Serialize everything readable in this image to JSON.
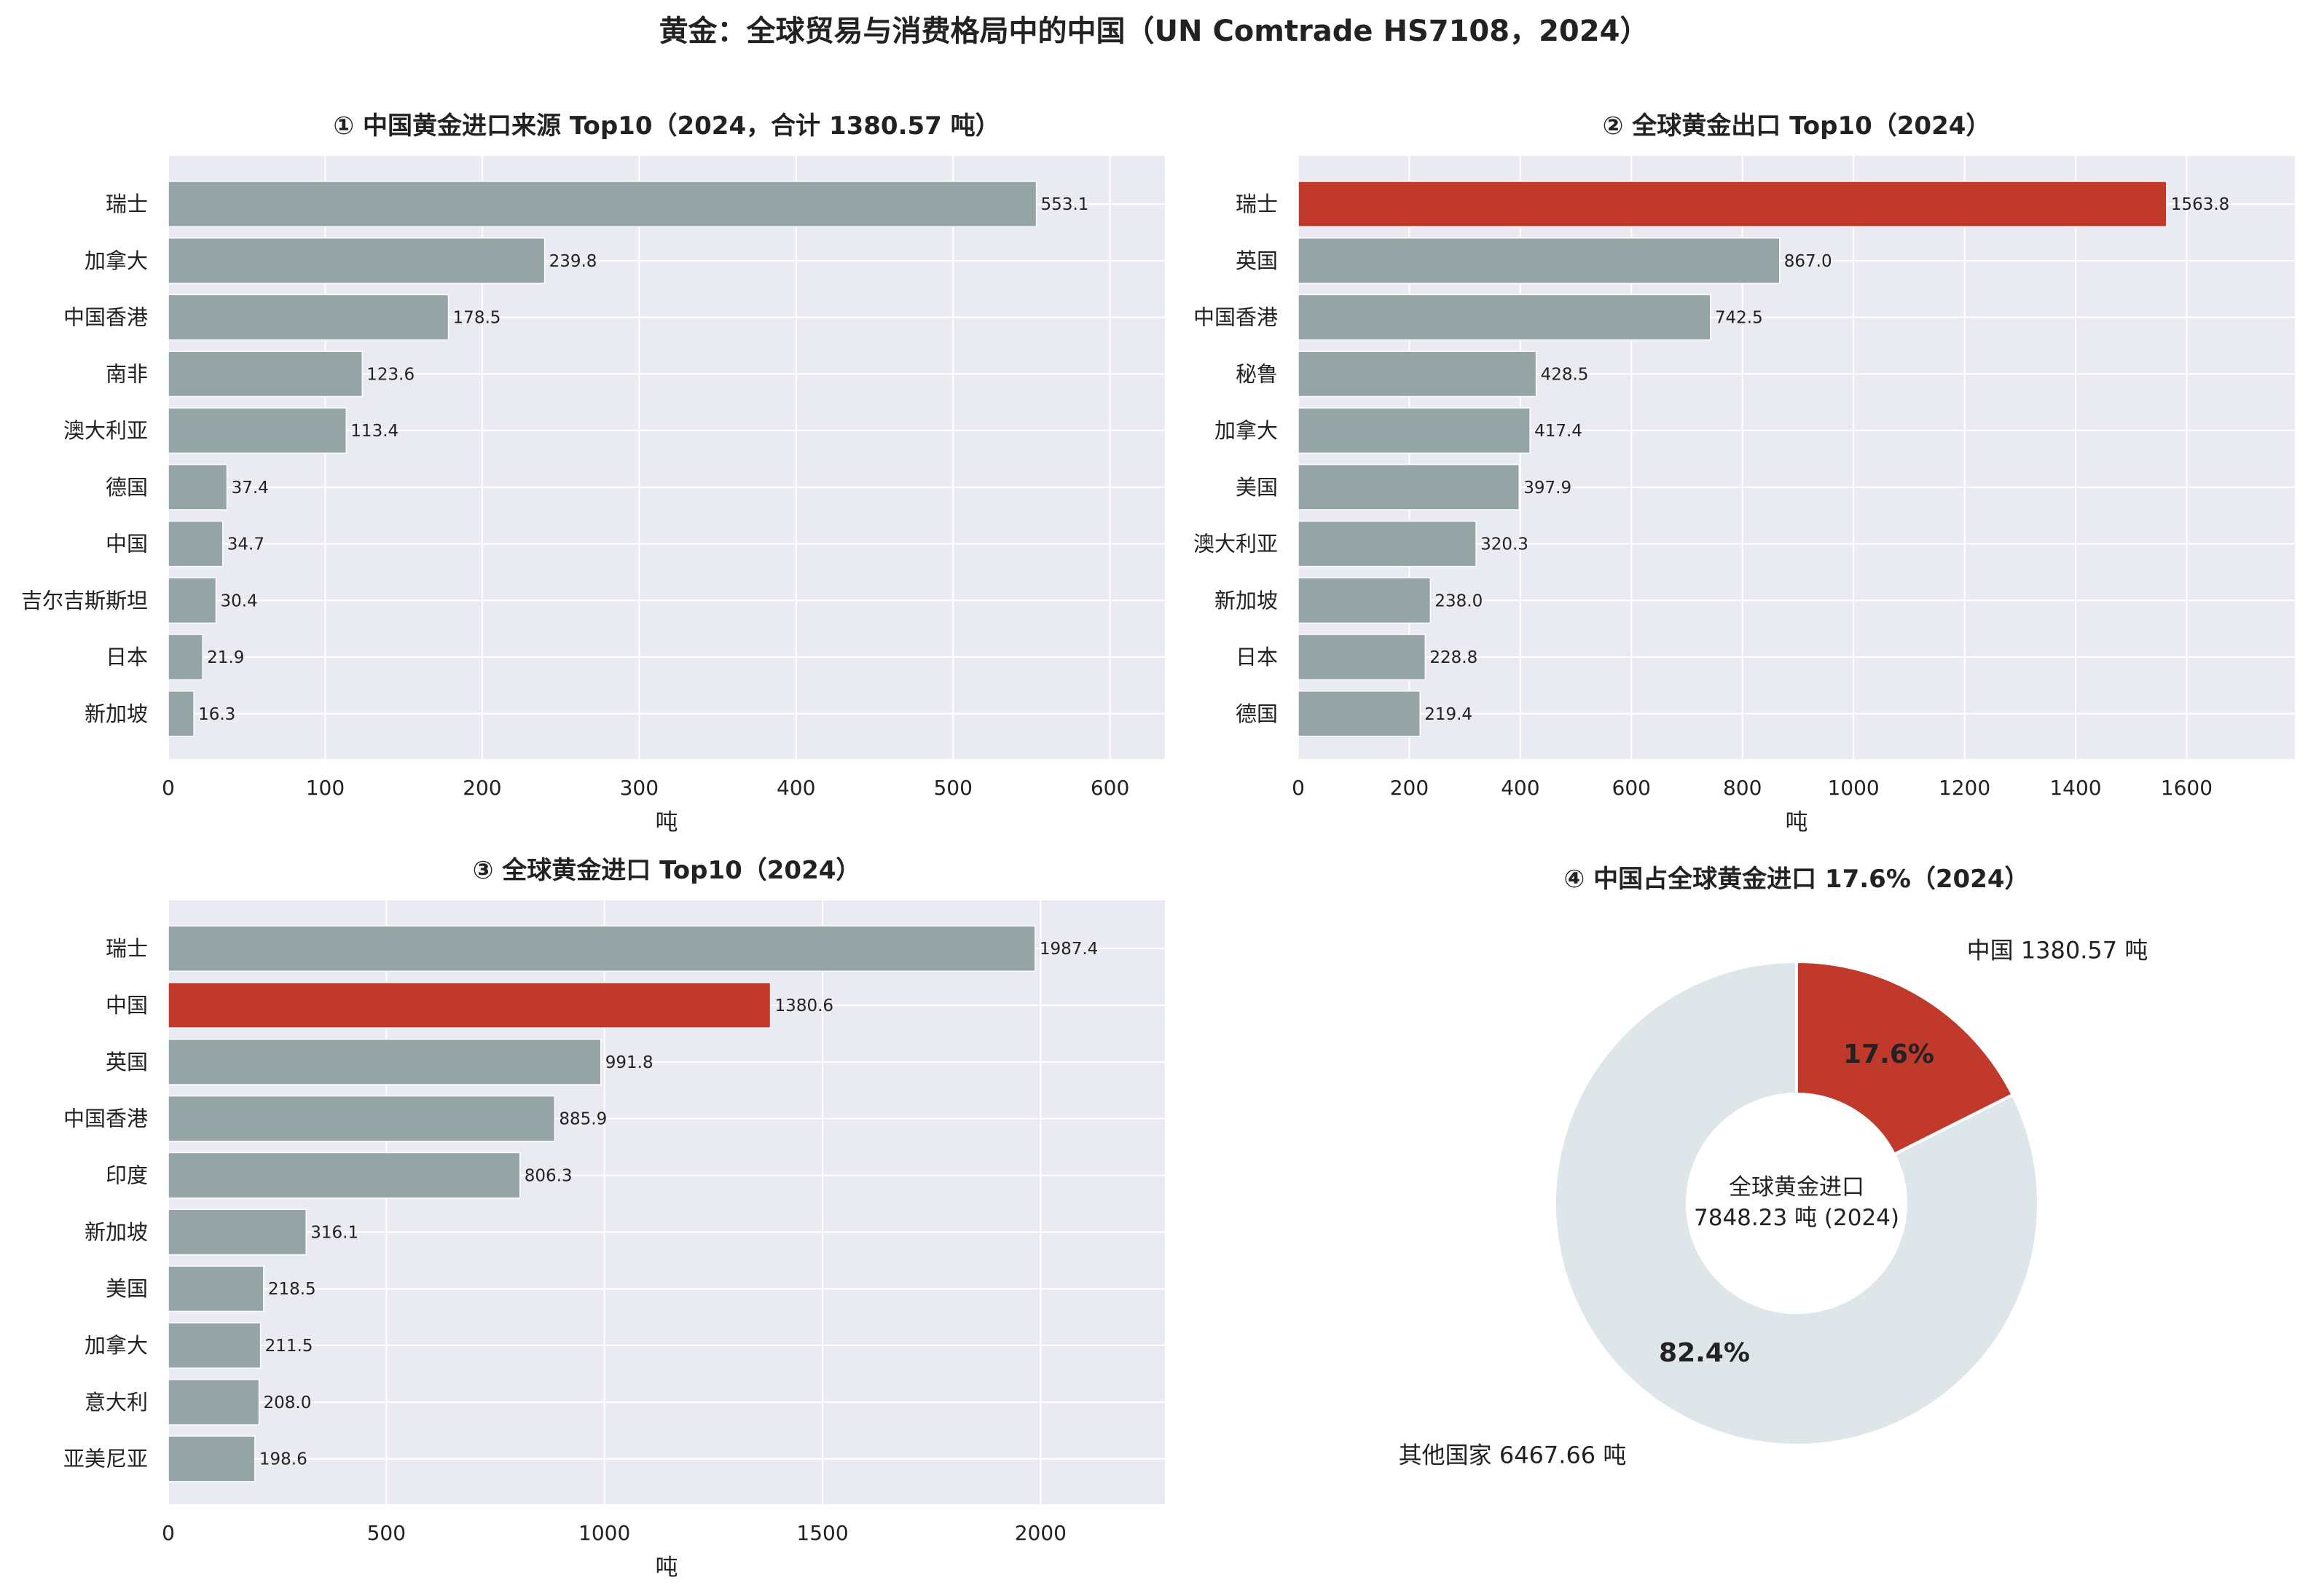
{
  "suptitle": "黄金：全球贸易与消费格局中的中国（UN Comtrade HS7108，2024）",
  "colors": {
    "bar": "#95a5a6",
    "highlight": "#c0392b",
    "plot_bg": "#eaeaf2",
    "grid": "#ffffff",
    "pie_other": "#dfe6e9"
  },
  "chart_data": [
    {
      "type": "bar",
      "orientation": "horizontal",
      "title": "① 中国黄金进口来源 Top10（2024，合计 1380.57 吨）",
      "xlabel": "吨",
      "xlim": [
        0,
        635
      ],
      "xticks": [
        0,
        100,
        200,
        300,
        400,
        500,
        600
      ],
      "categories": [
        "瑞士",
        "加拿大",
        "中国香港",
        "南非",
        "澳大利亚",
        "德国",
        "中国",
        "吉尔吉斯斯坦",
        "日本",
        "新加坡"
      ],
      "values": [
        553.1,
        239.8,
        178.5,
        123.6,
        113.4,
        37.4,
        34.7,
        30.4,
        21.9,
        16.3
      ],
      "value_labels": [
        "553.1",
        "239.8",
        "178.5",
        "123.6",
        "113.4",
        "37.4",
        "34.7",
        "30.4",
        "21.9",
        "16.3"
      ],
      "highlight": ""
    },
    {
      "type": "bar",
      "orientation": "horizontal",
      "title": "② 全球黄金出口 Top10（2024）",
      "xlabel": "吨",
      "xlim": [
        0,
        1795
      ],
      "xticks": [
        0,
        200,
        400,
        600,
        800,
        1000,
        1200,
        1400,
        1600
      ],
      "categories": [
        "瑞士",
        "英国",
        "中国香港",
        "秘鲁",
        "加拿大",
        "美国",
        "澳大利亚",
        "新加坡",
        "日本",
        "德国"
      ],
      "values": [
        1563.8,
        867.0,
        742.5,
        428.5,
        417.4,
        397.9,
        320.3,
        238.0,
        228.8,
        219.4
      ],
      "value_labels": [
        "1563.8",
        "867.0",
        "742.5",
        "428.5",
        "417.4",
        "397.9",
        "320.3",
        "238.0",
        "228.8",
        "219.4"
      ],
      "highlight": "瑞士"
    },
    {
      "type": "bar",
      "orientation": "horizontal",
      "title": "③ 全球黄金进口 Top10（2024）",
      "xlabel": "吨",
      "xlim": [
        0,
        2285
      ],
      "xticks": [
        0,
        500,
        1000,
        1500,
        2000
      ],
      "categories": [
        "瑞士",
        "中国",
        "英国",
        "中国香港",
        "印度",
        "新加坡",
        "美国",
        "加拿大",
        "意大利",
        "亚美尼亚"
      ],
      "values": [
        1987.4,
        1380.6,
        991.8,
        885.9,
        806.3,
        316.1,
        218.5,
        211.5,
        208.0,
        198.6
      ],
      "value_labels": [
        "1987.4",
        "1380.6",
        "991.8",
        "885.9",
        "806.3",
        "316.1",
        "218.5",
        "211.5",
        "208.0",
        "198.6"
      ],
      "highlight": "中国"
    },
    {
      "type": "pie",
      "donut": true,
      "title": "④ 中国占全球黄金进口 17.6%（2024）",
      "center_text": [
        "全球黄金进口",
        "7848.23 吨 (2024)"
      ],
      "slices": [
        {
          "label": "中国 1380.57 吨",
          "value": 1380.57,
          "pct_label": "17.6%",
          "color": "#c0392b"
        },
        {
          "label": "其他国家 6467.66 吨",
          "value": 6467.66,
          "pct_label": "82.4%",
          "color": "#dfe6e9"
        }
      ]
    }
  ]
}
